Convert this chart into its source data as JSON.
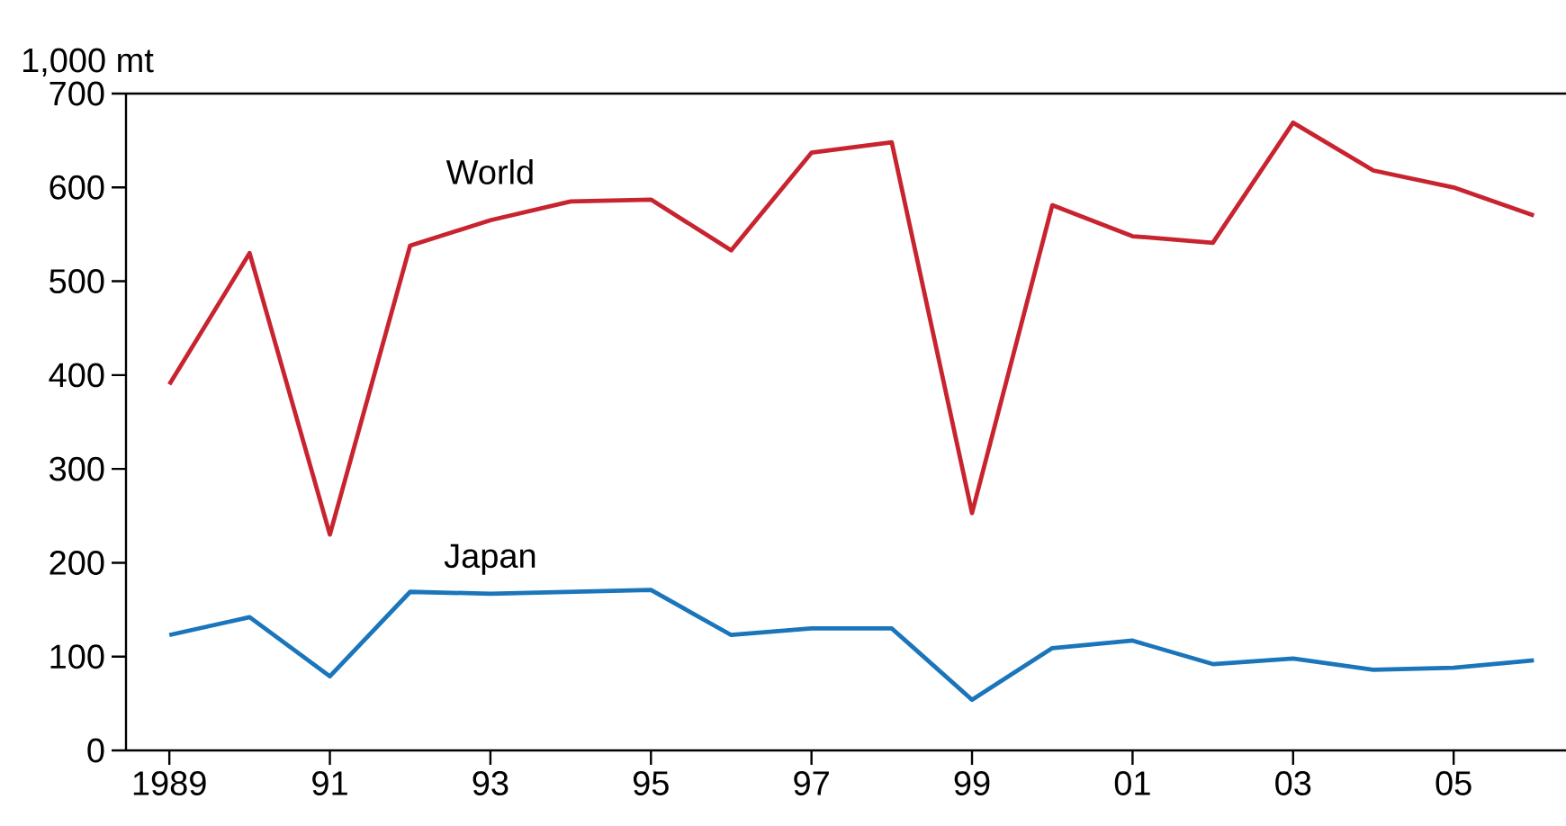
{
  "chart_data": {
    "type": "line",
    "ylabel": "1,000 mt",
    "x": [
      1989,
      1990,
      1991,
      1992,
      1993,
      1994,
      1995,
      1996,
      1997,
      1998,
      1999,
      2000,
      2001,
      2002,
      2003,
      2004,
      2005,
      2006
    ],
    "series": [
      {
        "name": "World",
        "color": "#c8242f",
        "values": [
          390,
          530,
          230,
          538,
          565,
          585,
          587,
          533,
          637,
          648,
          253,
          581,
          548,
          541,
          669,
          618,
          600,
          570
        ]
      },
      {
        "name": "Japan",
        "color": "#1a75bb",
        "values": [
          123,
          142,
          79,
          169,
          167,
          169,
          171,
          123,
          130,
          130,
          54,
          109,
          117,
          92,
          98,
          86,
          88,
          96
        ]
      }
    ],
    "xlim": [
      1988.46,
      2006.4
    ],
    "xticks": [
      {
        "value": 1989,
        "label": "1989"
      },
      {
        "value": 1991,
        "label": "91"
      },
      {
        "value": 1993,
        "label": "93"
      },
      {
        "value": 1995,
        "label": "95"
      },
      {
        "value": 1997,
        "label": "97"
      },
      {
        "value": 1999,
        "label": "99"
      },
      {
        "value": 2001,
        "label": "01"
      },
      {
        "value": 2003,
        "label": "03"
      },
      {
        "value": 2005,
        "label": "05"
      }
    ],
    "ylim": [
      0,
      700
    ],
    "yticks": [
      0,
      100,
      200,
      300,
      400,
      500,
      600,
      700
    ],
    "grid": false,
    "legend": false,
    "marker": "none",
    "line_style": "solid"
  }
}
